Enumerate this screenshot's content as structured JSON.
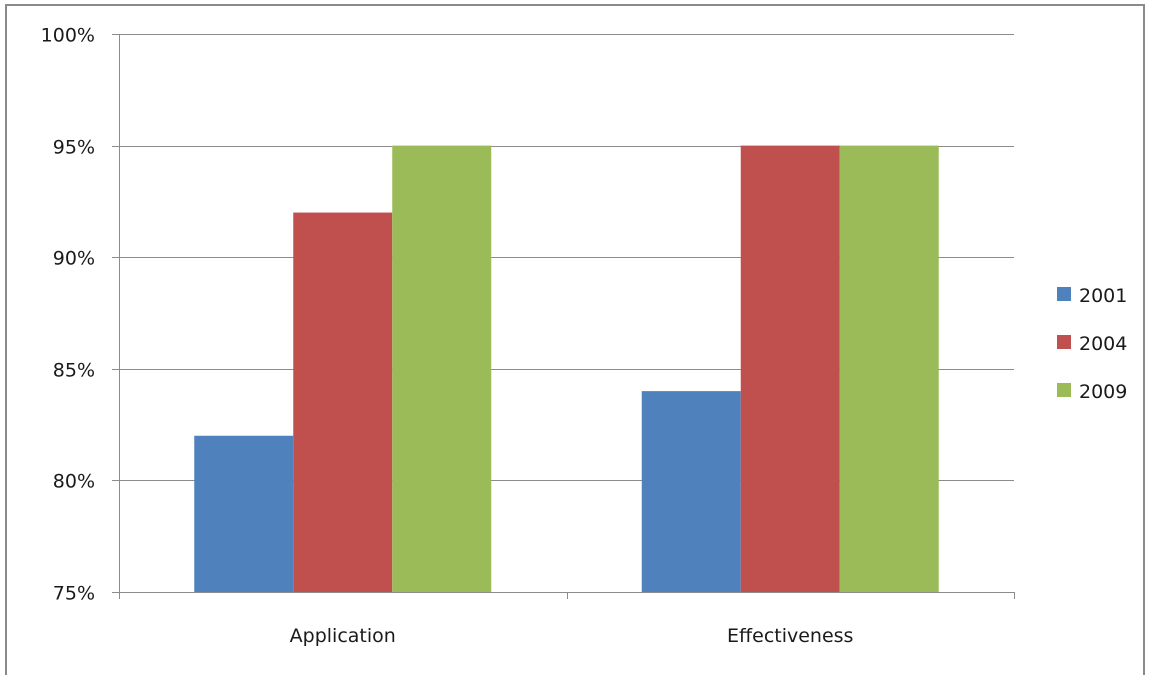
{
  "chart_data": {
    "type": "bar",
    "title": "",
    "xlabel": "",
    "ylabel": "",
    "categories": [
      "Application",
      "Effectiveness"
    ],
    "series": [
      {
        "name": "2001",
        "values": [
          0.82,
          0.84
        ],
        "color": "#4f81bd"
      },
      {
        "name": "2004",
        "values": [
          0.92,
          0.95
        ],
        "color": "#c0504d"
      },
      {
        "name": "2009",
        "values": [
          0.95,
          0.95
        ],
        "color": "#9bbb59"
      }
    ],
    "ylim": [
      0.75,
      1.0
    ],
    "yticks": [
      "75%",
      "80%",
      "85%",
      "90%",
      "95%",
      "100%"
    ],
    "grid": true,
    "legend_position": "right"
  }
}
